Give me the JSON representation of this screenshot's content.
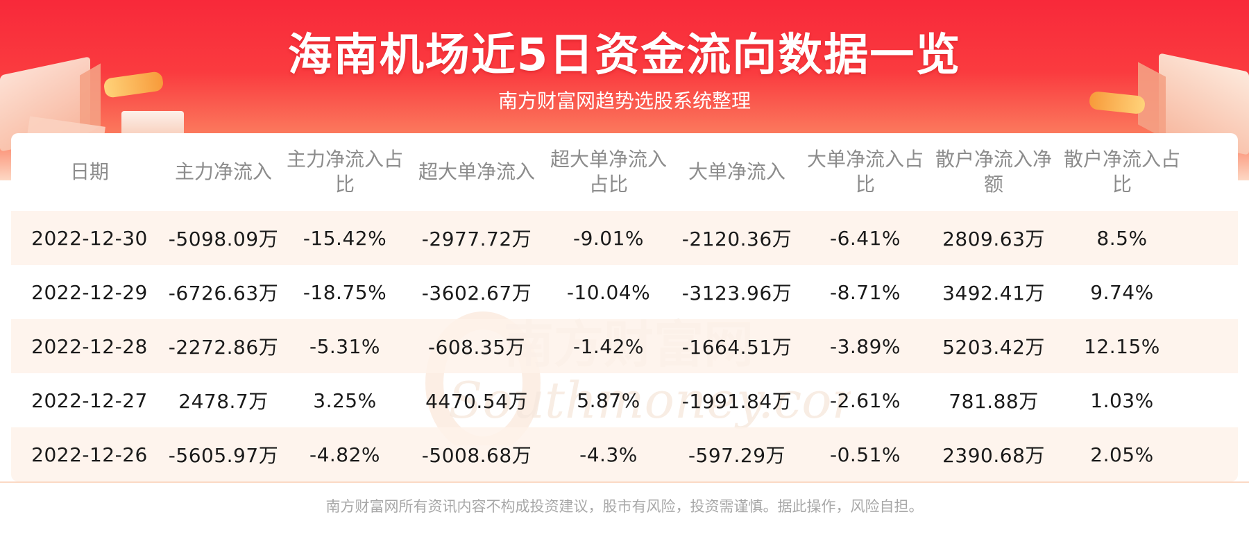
{
  "header": {
    "title": "海南机场近5日资金流向数据一览",
    "subtitle": "南方财富网趋势选股系统整理"
  },
  "watermark": {
    "cn": "南方财富网",
    "en": "Southmoney.com"
  },
  "table": {
    "columns": [
      "日期",
      "主力净流入",
      "主力净流入占比",
      "超大单净流入",
      "超大单净流入占比",
      "大单净流入",
      "大单净流入占比",
      "散户净流入净额",
      "散户净流入占比"
    ],
    "rows": [
      [
        "2022-12-30",
        "-5098.09万",
        "-15.42%",
        "-2977.72万",
        "-9.01%",
        "-2120.36万",
        "-6.41%",
        "2809.63万",
        "8.5%"
      ],
      [
        "2022-12-29",
        "-6726.63万",
        "-18.75%",
        "-3602.67万",
        "-10.04%",
        "-3123.96万",
        "-8.71%",
        "3492.41万",
        "9.74%"
      ],
      [
        "2022-12-28",
        "-2272.86万",
        "-5.31%",
        "-608.35万",
        "-1.42%",
        "-1664.51万",
        "-3.89%",
        "5203.42万",
        "12.15%"
      ],
      [
        "2022-12-27",
        "2478.7万",
        "3.25%",
        "4470.54万",
        "5.87%",
        "-1991.84万",
        "-2.61%",
        "781.88万",
        "1.03%"
      ],
      [
        "2022-12-26",
        "-5605.97万",
        "-4.82%",
        "-5008.68万",
        "-4.3%",
        "-597.29万",
        "-0.51%",
        "2390.68万",
        "2.05%"
      ]
    ]
  },
  "footer": {
    "disclaimer": "南方财富网所有资讯内容不构成投资建议，股市有风险，投资需谨慎。据此操作，风险自担。"
  },
  "colors": {
    "banner_red": "#f8293a",
    "row_tint": "#fef2ea",
    "header_text": "#8c8c8c",
    "footer_text": "#a8a8a8"
  }
}
